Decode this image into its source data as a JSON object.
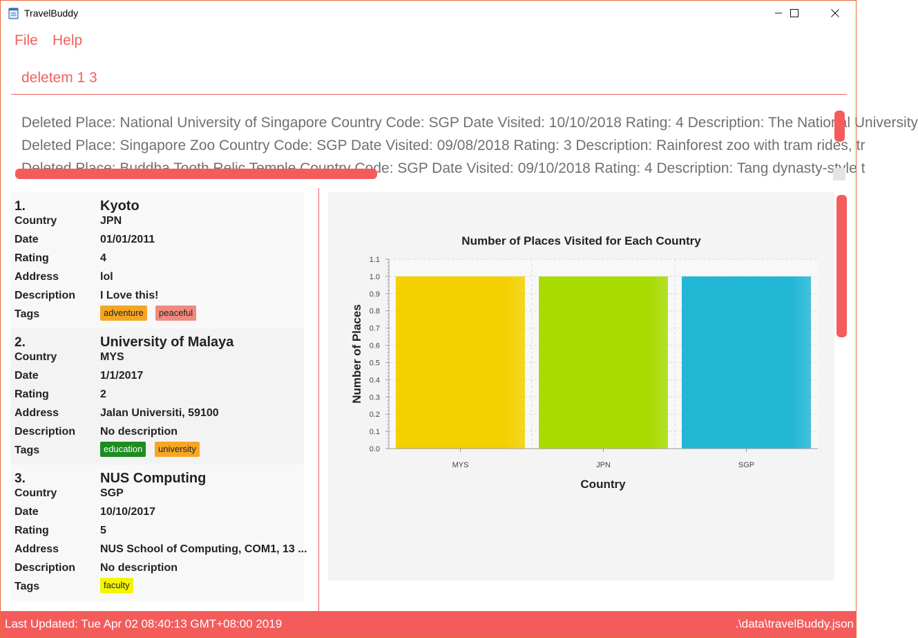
{
  "window": {
    "title": "TravelBuddy",
    "minimize_icon": "minimize-icon",
    "maximize_icon": "maximize-icon",
    "close_icon": "close-icon"
  },
  "menu": {
    "items": [
      "File",
      "Help"
    ]
  },
  "command": {
    "value": "deletem 1 3"
  },
  "result": {
    "lines": [
      "Deleted Place: National University of Singapore Country Code: SGP Date Visited: 10/10/2018 Rating: 4 Description: The National University",
      "Deleted Place: Singapore Zoo Country Code: SGP Date Visited: 09/08/2018 Rating: 3 Description: Rainforest zoo with tram rides, tr",
      "Deleted Place: Buddha Tooth Relic Temple Country Code: SGP Date Visited: 09/10/2018 Rating: 4 Description: Tang dynasty-style t"
    ]
  },
  "labels": {
    "country": "Country",
    "date": "Date",
    "rating": "Rating",
    "address": "Address",
    "description": "Description",
    "tags": "Tags"
  },
  "places": [
    {
      "index": "1.",
      "name": "Kyoto",
      "country": "JPN",
      "date": "01/01/2011",
      "rating": "4",
      "address": "lol",
      "description": "I Love this!",
      "tags": [
        {
          "name": "adventure",
          "color": "#f5a623"
        },
        {
          "name": "peaceful",
          "color": "#f08a7e"
        }
      ]
    },
    {
      "index": "2.",
      "name": "University of Malaya",
      "country": "MYS",
      "date": "1/1/2017",
      "rating": "2",
      "address": "Jalan Universiti, 59100",
      "description": "No description",
      "tags": [
        {
          "name": "education",
          "color": "#1e8c22"
        },
        {
          "name": "university",
          "color": "#f5a623"
        }
      ]
    },
    {
      "index": "3.",
      "name": "NUS Computing",
      "country": "SGP",
      "date": "10/10/2017",
      "rating": "5",
      "address": "NUS School of Computing, COM1, 13 ...",
      "description": "No description",
      "tags": [
        {
          "name": "faculty",
          "color": "#f5f500"
        }
      ]
    }
  ],
  "chart_data": {
    "type": "bar",
    "title": "Number of Places Visited for Each Country",
    "xlabel": "Country",
    "ylabel": "Number of Places",
    "categories": [
      "MYS",
      "JPN",
      "SGP"
    ],
    "values": [
      1.0,
      1.0,
      1.0
    ],
    "colors": [
      "#f3d000",
      "#a8dc00",
      "#23b7d6"
    ],
    "ylim": [
      0,
      1.1
    ],
    "yticks": [
      "0.0",
      "0.1",
      "0.2",
      "0.3",
      "0.4",
      "0.5",
      "0.6",
      "0.7",
      "0.8",
      "0.9",
      "1.0",
      "1.1"
    ],
    "grid": true
  },
  "status": {
    "last_updated": "Last Updated: Tue Apr 02 08:40:13 GMT+08:00 2019",
    "file_path": ".\\data\\travelBuddy.json"
  },
  "theme": {
    "accent": "#f45c5c",
    "text_accent": "#f0605d"
  }
}
